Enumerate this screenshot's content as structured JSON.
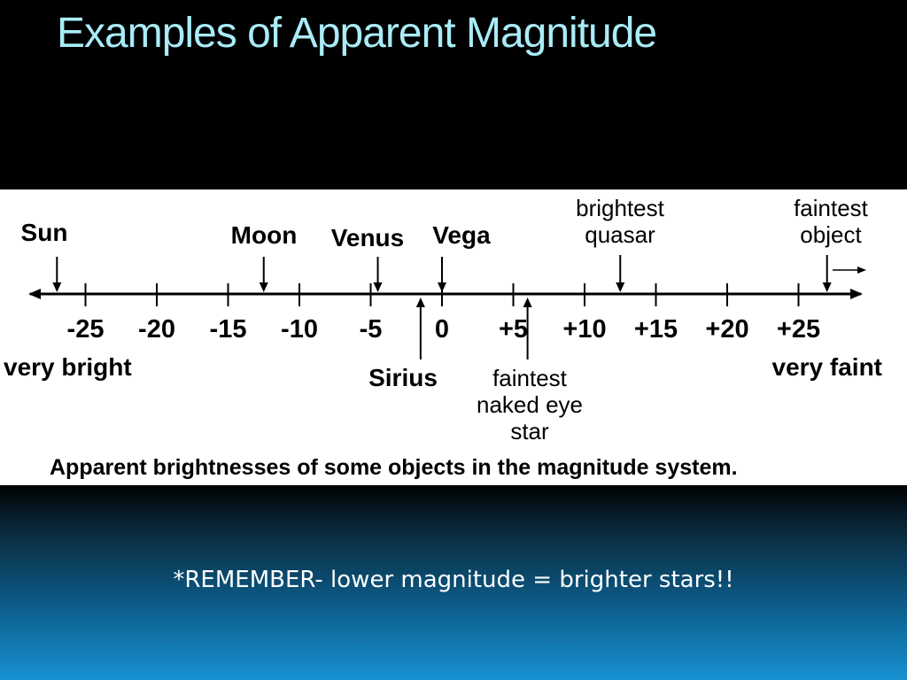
{
  "slide": {
    "title": "Examples of Apparent Magnitude",
    "note": "*REMEMBER- lower magnitude = brighter stars!!"
  },
  "diagram": {
    "ticks": [
      "-25",
      "-20",
      "-15",
      "-10",
      "-5",
      "0",
      "+5",
      "+10",
      "+15",
      "+20",
      "+25"
    ],
    "tick_values": [
      -25,
      -20,
      -15,
      -10,
      -5,
      0,
      5,
      10,
      15,
      20,
      25
    ],
    "end_left": "very bright",
    "end_right": "very faint",
    "caption": "Apparent brightnesses of some objects in the magnitude system.",
    "objects_above": [
      {
        "label": "Sun",
        "magnitude": -27
      },
      {
        "label": "Moon",
        "magnitude": -12.5
      },
      {
        "label": "Venus",
        "magnitude": -4.5
      },
      {
        "label": "Vega",
        "magnitude": 0
      },
      {
        "label_lines": [
          "brightest",
          "quasar"
        ],
        "magnitude": 12.5
      },
      {
        "label_lines": [
          "faintest",
          "object"
        ],
        "magnitude": 27
      }
    ],
    "objects_below": [
      {
        "label": "Sirius",
        "magnitude": -1.5
      },
      {
        "label_lines": [
          "faintest",
          "naked eye",
          "star"
        ],
        "magnitude": 6
      }
    ]
  }
}
